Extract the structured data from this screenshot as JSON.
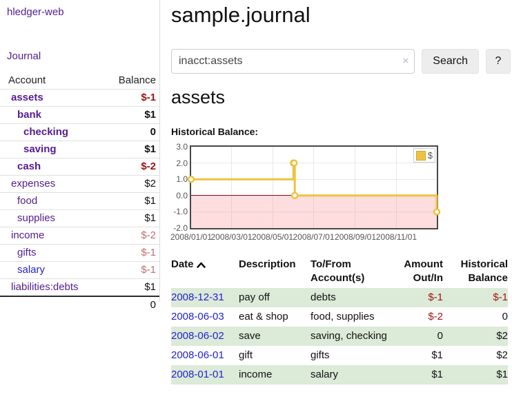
{
  "colors": {
    "link_purple": "#551b92",
    "link_blue": "#2222cf",
    "negative_strong": "#9b1212",
    "negative_soft": "#bd7070",
    "table_negative": "#9e1414",
    "row_stripe_green": "#dcead8",
    "chart_line": "#EDC240",
    "chart_zero_line": "#7d0b0b"
  },
  "sidebar": {
    "brand": "hledger-web",
    "journal_link": "Journal",
    "accounts_table": {
      "headers": {
        "account": "Account",
        "balance": "Balance"
      },
      "rows": [
        {
          "name": "assets",
          "level": 0,
          "bold": true,
          "balance": "$-1",
          "balance_tone": "neg-strong",
          "link_tone": "purple"
        },
        {
          "name": "bank",
          "level": 1,
          "bold": true,
          "balance": "$1",
          "balance_tone": "",
          "link_tone": "purple"
        },
        {
          "name": "checking",
          "level": 2,
          "bold": true,
          "balance": "0",
          "balance_tone": "",
          "link_tone": "purple"
        },
        {
          "name": "saving",
          "level": 2,
          "bold": true,
          "balance": "$1",
          "balance_tone": "",
          "link_tone": "purple"
        },
        {
          "name": "cash",
          "level": 1,
          "bold": true,
          "balance": "$-2",
          "balance_tone": "neg-strong",
          "link_tone": "purple"
        },
        {
          "name": "expenses",
          "level": 0,
          "bold": false,
          "balance": "$2",
          "balance_tone": "",
          "link_tone": "purple"
        },
        {
          "name": "food",
          "level": 1,
          "bold": false,
          "balance": "$1",
          "balance_tone": "",
          "link_tone": "purple"
        },
        {
          "name": "supplies",
          "level": 1,
          "bold": false,
          "balance": "$1",
          "balance_tone": "",
          "link_tone": "purple"
        },
        {
          "name": "income",
          "level": 0,
          "bold": false,
          "balance": "$-2",
          "balance_tone": "neg-soft",
          "link_tone": "purple"
        },
        {
          "name": "gifts",
          "level": 1,
          "bold": false,
          "balance": "$-1",
          "balance_tone": "neg-soft",
          "link_tone": "purple"
        },
        {
          "name": "salary",
          "level": 1,
          "bold": false,
          "balance": "$-1",
          "balance_tone": "neg-soft",
          "link_tone": "blue"
        },
        {
          "name": "liabilities:debts",
          "level": 0,
          "bold": false,
          "balance": "$1",
          "balance_tone": "",
          "link_tone": "purple"
        }
      ],
      "total": "0"
    }
  },
  "header": {
    "title": "sample.journal"
  },
  "search": {
    "value": "inacct:assets",
    "clear_icon": "×",
    "button_label": "Search",
    "help_label": "?"
  },
  "account_page": {
    "title": "assets",
    "chart_heading": "Historical Balance:"
  },
  "chart_data": {
    "type": "line",
    "step": true,
    "title": "Historical Balance",
    "series": [
      {
        "name": "$",
        "color": "#EDC240",
        "points": [
          [
            "2008-01-01",
            1
          ],
          [
            "2008-06-01",
            2
          ],
          [
            "2008-06-02",
            2
          ],
          [
            "2008-06-03",
            0
          ],
          [
            "2008-12-31",
            -1
          ]
        ]
      }
    ],
    "x_range": [
      "2008/01/01",
      "2008/12/31"
    ],
    "x_ticks": [
      "2008/01/01",
      "2008/03/01",
      "2008/05/01",
      "2008/07/01",
      "2008/09/01",
      "2008/11/01"
    ],
    "y_ticks": [
      "3.0",
      "2.0",
      "1.0",
      "0.0",
      "-1.0",
      "-2.0"
    ],
    "ylim": [
      -2,
      3
    ],
    "grid": true,
    "negative_region": true,
    "legend": {
      "label": "$",
      "position": "top-right"
    }
  },
  "register": {
    "columns": [
      {
        "label": "Date",
        "sorted": "asc",
        "align": "left"
      },
      {
        "label": "Description",
        "align": "left"
      },
      {
        "label": "To/From Account(s)",
        "align": "left"
      },
      {
        "label": "Amount Out/In",
        "align": "right"
      },
      {
        "label": "Historical Balance",
        "align": "right"
      }
    ],
    "rows": [
      {
        "date": "2008-12-31",
        "description": "pay off",
        "accounts": "debts",
        "amount": "$-1",
        "amount_negative": true,
        "balance": "$-1",
        "balance_negative": true
      },
      {
        "date": "2008-06-03",
        "description": "eat & shop",
        "accounts": "food, supplies",
        "amount": "$-2",
        "amount_negative": true,
        "balance": "0",
        "balance_negative": false
      },
      {
        "date": "2008-06-02",
        "description": "save",
        "accounts": "saving, checking",
        "amount": "0",
        "amount_negative": false,
        "balance": "$2",
        "balance_negative": false
      },
      {
        "date": "2008-06-01",
        "description": "gift",
        "accounts": "gifts",
        "amount": "$1",
        "amount_negative": false,
        "balance": "$2",
        "balance_negative": false
      },
      {
        "date": "2008-01-01",
        "description": "income",
        "accounts": "salary",
        "amount": "$1",
        "amount_negative": false,
        "balance": "$1",
        "balance_negative": false
      }
    ]
  }
}
